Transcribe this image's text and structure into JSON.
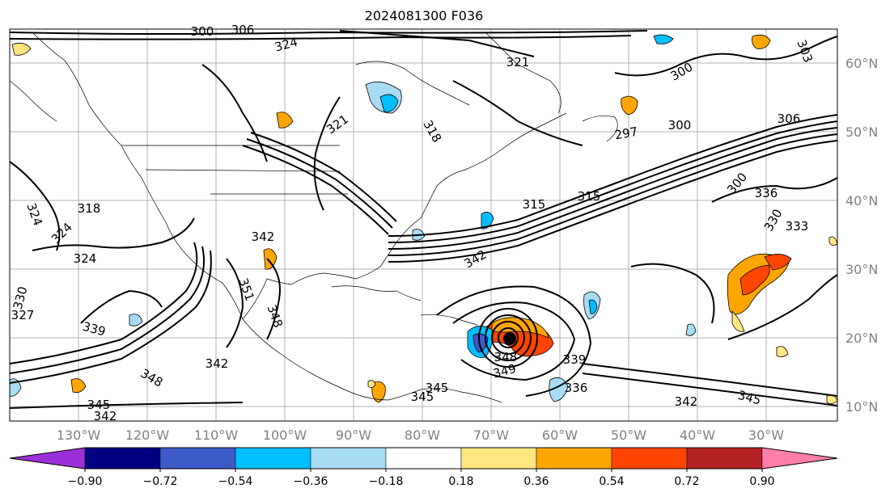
{
  "title": "2024081300 F036",
  "lon_labels": [
    "130°W",
    "120°W",
    "110°W",
    "100°W",
    "90°W",
    "80°W",
    "70°W",
    "60°W",
    "50°W",
    "40°W",
    "30°W"
  ],
  "lat_labels": [
    "60°N",
    "50°N",
    "40°N",
    "30°N",
    "20°N",
    "10°N"
  ],
  "colorbar": {
    "tick_labels": [
      "−0.90",
      "−0.72",
      "−0.54",
      "−0.36",
      "−0.18",
      "0.18",
      "0.36",
      "0.54",
      "0.72",
      "0.90"
    ],
    "bins": [
      {
        "color": "#9b30d8"
      },
      {
        "color": "#000080"
      },
      {
        "color": "#3c5ac8"
      },
      {
        "color": "#00bfff"
      },
      {
        "color": "#a8dcf5"
      },
      {
        "color": "#ffffff"
      },
      {
        "color": "#ffe680"
      },
      {
        "color": "#ffa500"
      },
      {
        "color": "#ff4500"
      },
      {
        "color": "#b22222"
      },
      {
        "color": "#ff7fa8"
      }
    ]
  },
  "contour_labels": [
    "300",
    "306",
    "324",
    "321",
    "318",
    "321",
    "300",
    "300",
    "297",
    "306",
    "303",
    "315",
    "315",
    "300",
    "336",
    "330",
    "333",
    "342",
    "345",
    "345",
    "345",
    "342",
    "339",
    "336",
    "348",
    "349",
    "351",
    "348",
    "342",
    "342",
    "348",
    "345",
    "342",
    "339",
    "330",
    "327",
    "324",
    "324",
    "318",
    "324"
  ]
}
